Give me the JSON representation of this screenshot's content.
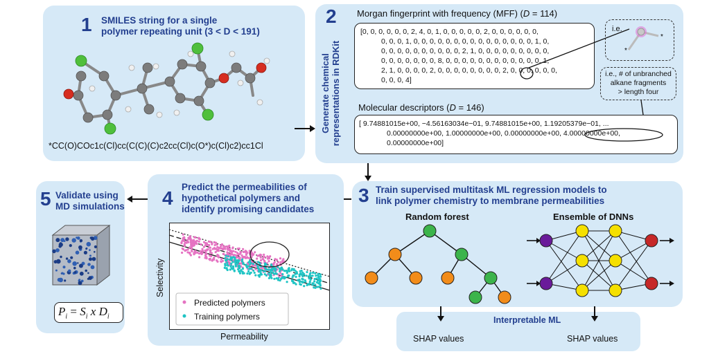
{
  "step1": {
    "number": "1",
    "title_lines": [
      "SMILES string for a single",
      "polymer repeating unit (3 < D < 191)"
    ],
    "smiles": "*CC(O)COc1c(Cl)cc(C(C)(C)c2cc(Cl)c(O*)c(Cl)c2)cc1Cl"
  },
  "step2": {
    "number": "2",
    "vertical_title_lines": [
      "Generate chemical",
      "representations in RDKit"
    ],
    "mff_title": "Morgan fingerprint with frequency (MFF) (",
    "mff_d": "D",
    "mff_value": " = 114)",
    "mff_lines": [
      "[0, 0, 0, 0, 0, 0, 2, 4, 0, 1, 0, 0, 0, 0, 0, 2, 0, 0, 0, 0, 0, 0,",
      "0, 0, 0, 1, 0, 0, 0, 0, 0, 0, 0, 0, 0, 0, 0, 0, 0, 0, 0, 1, 0,",
      "0, 0, 0, 0, 0, 0, 0, 0, 0, 0, 2, 1, 0, 0, 0, 0, 0, 0, 0, 0, 0,",
      "0, 0, 0, 0, 0, 0, 0, 8, 0, 0, 0, 0, 0, 0, 0, 0, 0, 0, 0, 0, 1,",
      "2, 1, 0, 0, 0, 0, 2, 0, 0, 0, 0, 0, 0, 0, 0, 2, 0, 0, 0, 0, 0, 0,",
      "0, 0, 0, 4]"
    ],
    "ie_label": "i.e.",
    "ie_note_lines": [
      "i.e., # of unbranched",
      "alkane fragments",
      "> length four"
    ],
    "md_title": "Molecular descriptors (",
    "md_d": "D",
    "md_value": " = 146)",
    "md_lines": [
      "[ 9.74881015e+00, −4.56163034e−01, 9.74881015e+00, 1.19205379e−01, ...",
      "0.00000000e+00, 1.00000000e+00, 0.00000000e+00, 4.00000000e+00,",
      "0.00000000e+00]"
    ]
  },
  "step3": {
    "number": "3",
    "title_lines": [
      "Train supervised multitask ML regression models to",
      "link polymer chemistry to membrane permeabilities"
    ],
    "rf_label": "Random forest",
    "dnn_label": "Ensemble of DNNs",
    "interp_label": "Interpretable ML",
    "shap_left": "SHAP values",
    "shap_right": "SHAP values"
  },
  "step4": {
    "number": "4",
    "title_lines": [
      "Predict the permeabilities of",
      "hypothetical polymers and",
      "identify promising candidates"
    ],
    "ylabel": "Selectivity",
    "xlabel": "Permeability",
    "legend_predicted": "Predicted polymers",
    "legend_training": "Training polymers"
  },
  "step5": {
    "number": "5",
    "title_lines": [
      "Validate using",
      "MD simulations"
    ],
    "formula_P": "P",
    "formula_i": "i",
    "formula_S": "S",
    "formula_x": "x",
    "formula_D": "D"
  },
  "colors": {
    "panel": "#d6e9f7",
    "title": "#233f8f",
    "green_node": "#3cb44b",
    "orange_node": "#f28c1a",
    "purple_node": "#6a1b9a",
    "yellow_node": "#f5e000",
    "red_node": "#c62828",
    "pink_points": "#e573c2",
    "cyan_points": "#1fc4c4"
  }
}
